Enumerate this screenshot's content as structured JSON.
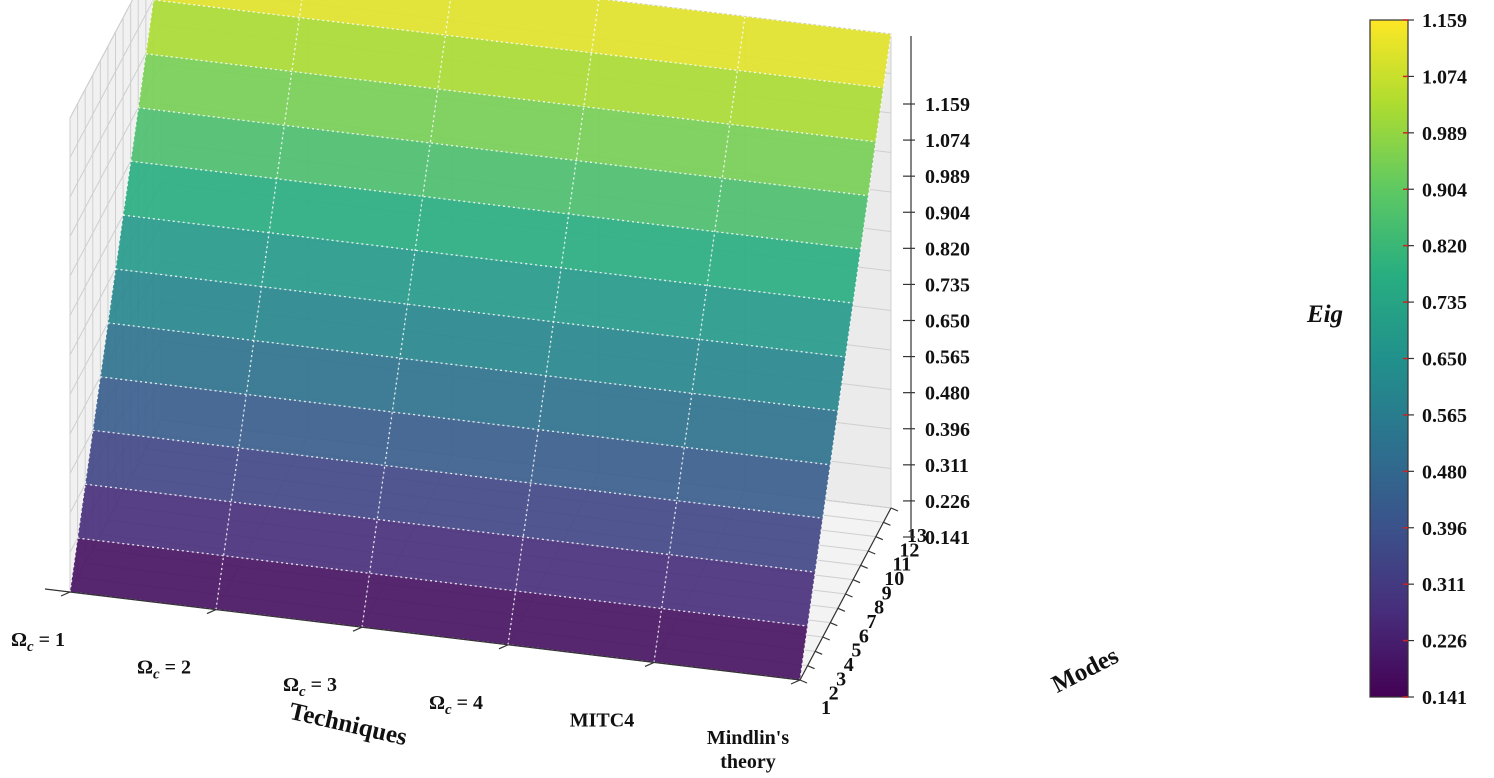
{
  "chart_data": {
    "type": "surface3d",
    "title": "",
    "xlabel": "Techniques",
    "ylabel": "Modes",
    "zlabel": "Eig",
    "techniques": [
      "Ωc = 1",
      "Ωc = 2",
      "Ωc = 3",
      "Ωc = 4",
      "MITC4",
      "Mindlin's theory"
    ],
    "technique_label_parts": [
      {
        "base": "Ω",
        "sub": "c",
        "rest": " = 1"
      },
      {
        "base": "Ω",
        "sub": "c",
        "rest": " = 2"
      },
      {
        "base": "Ω",
        "sub": "c",
        "rest": " = 3"
      },
      {
        "base": "Ω",
        "sub": "c",
        "rest": " = 4"
      },
      {
        "base": "MITC4",
        "sub": "",
        "rest": ""
      },
      {
        "base": "Mindlin's",
        "sub": "",
        "rest": "",
        "line2": "theory"
      }
    ],
    "modes": [
      1,
      2,
      3,
      4,
      5,
      6,
      7,
      8,
      9,
      10,
      11,
      12,
      13
    ],
    "mode_tick_labels": [
      "1",
      "2",
      "3",
      "4",
      "5",
      "6",
      "7",
      "8",
      "9",
      "10",
      "11",
      "12",
      "13"
    ],
    "z_ticks": [
      "0.141",
      "0.226",
      "0.311",
      "0.396",
      "0.480",
      "0.565",
      "0.650",
      "0.735",
      "0.820",
      "0.904",
      "0.989",
      "1.074",
      "1.159"
    ],
    "zlim": [
      0.141,
      1.159
    ],
    "values_by_mode": [
      0.141,
      0.226,
      0.311,
      0.396,
      0.48,
      0.565,
      0.65,
      0.735,
      0.82,
      0.904,
      0.989,
      1.074,
      1.159
    ],
    "values_note_free": true,
    "colorbar": {
      "cmap": "viridis",
      "range": [
        0.141,
        1.159
      ],
      "ticks": [
        "0.141",
        "0.226",
        "0.311",
        "0.396",
        "0.480",
        "0.565",
        "0.650",
        "0.735",
        "0.820",
        "0.904",
        "0.989",
        "1.074",
        "1.159"
      ]
    },
    "grid": true
  }
}
